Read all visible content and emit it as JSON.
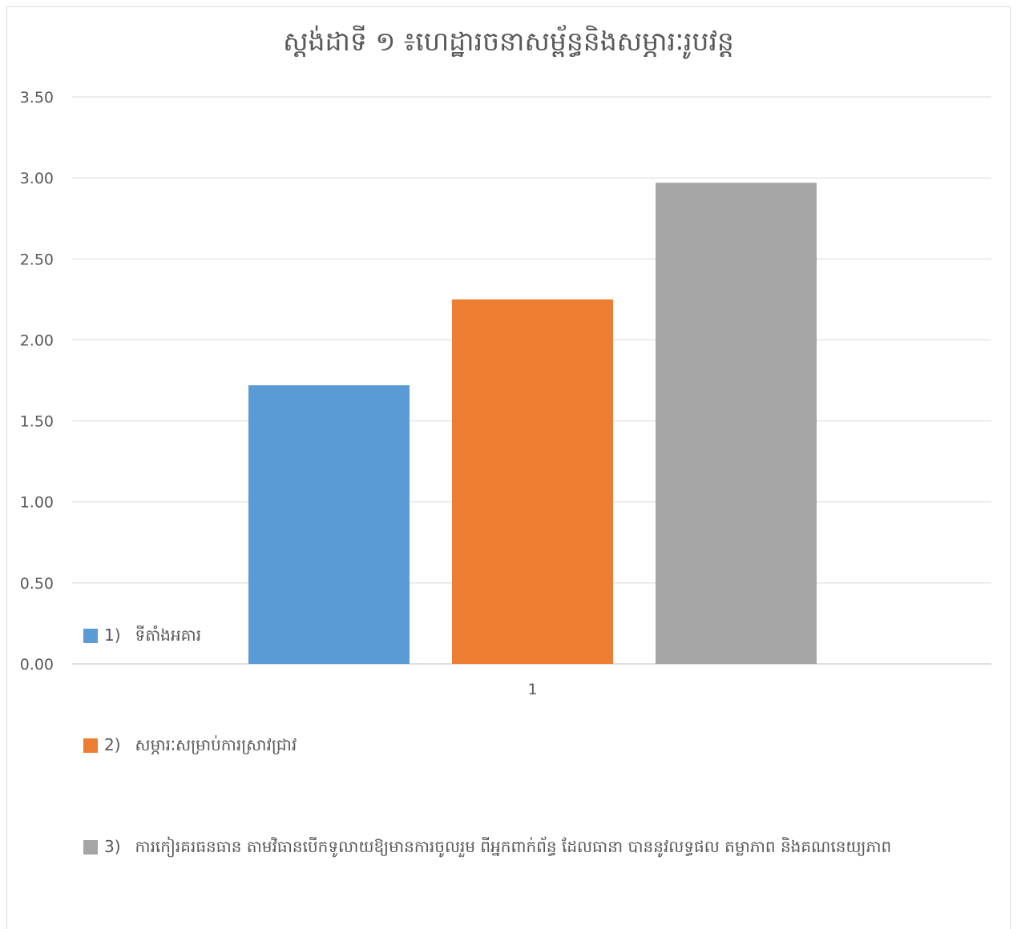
{
  "chart_data": {
    "type": "bar",
    "title": "ស្តង់ដាទី ១ ៖ហេដ្ឋារចនាសម្ព័ន្ធនិងសម្ភារៈរូបវន្ត",
    "categories": [
      "1"
    ],
    "series": [
      {
        "name": "ទីតាំងអគារ",
        "number": "1)",
        "values": [
          1.72
        ],
        "color": "#5b9bd5"
      },
      {
        "name": "សម្ភារៈសម្រាប់ការស្រាវជ្រាវ",
        "number": "2)",
        "values": [
          2.25
        ],
        "color": "#ed7d31"
      },
      {
        "name": "ការកៀរគរធនធាន តាមវិធានបើកទូលាយឱ្យមានការចូលរួម ពីអ្នកពាក់ព័ន្ធ ដែលធានា បាននូវលទ្ធផល តម្លាភាព  និងគណនេយ្យភាព",
        "number": "3)",
        "values": [
          2.97
        ],
        "color": "#a5a5a5"
      }
    ],
    "yticks": [
      "0.00",
      "0.50",
      "1.00",
      "1.50",
      "2.00",
      "2.50",
      "3.00",
      "3.50"
    ],
    "ylim": [
      0,
      3.5
    ],
    "grid": true,
    "legend_position": "bottom"
  }
}
